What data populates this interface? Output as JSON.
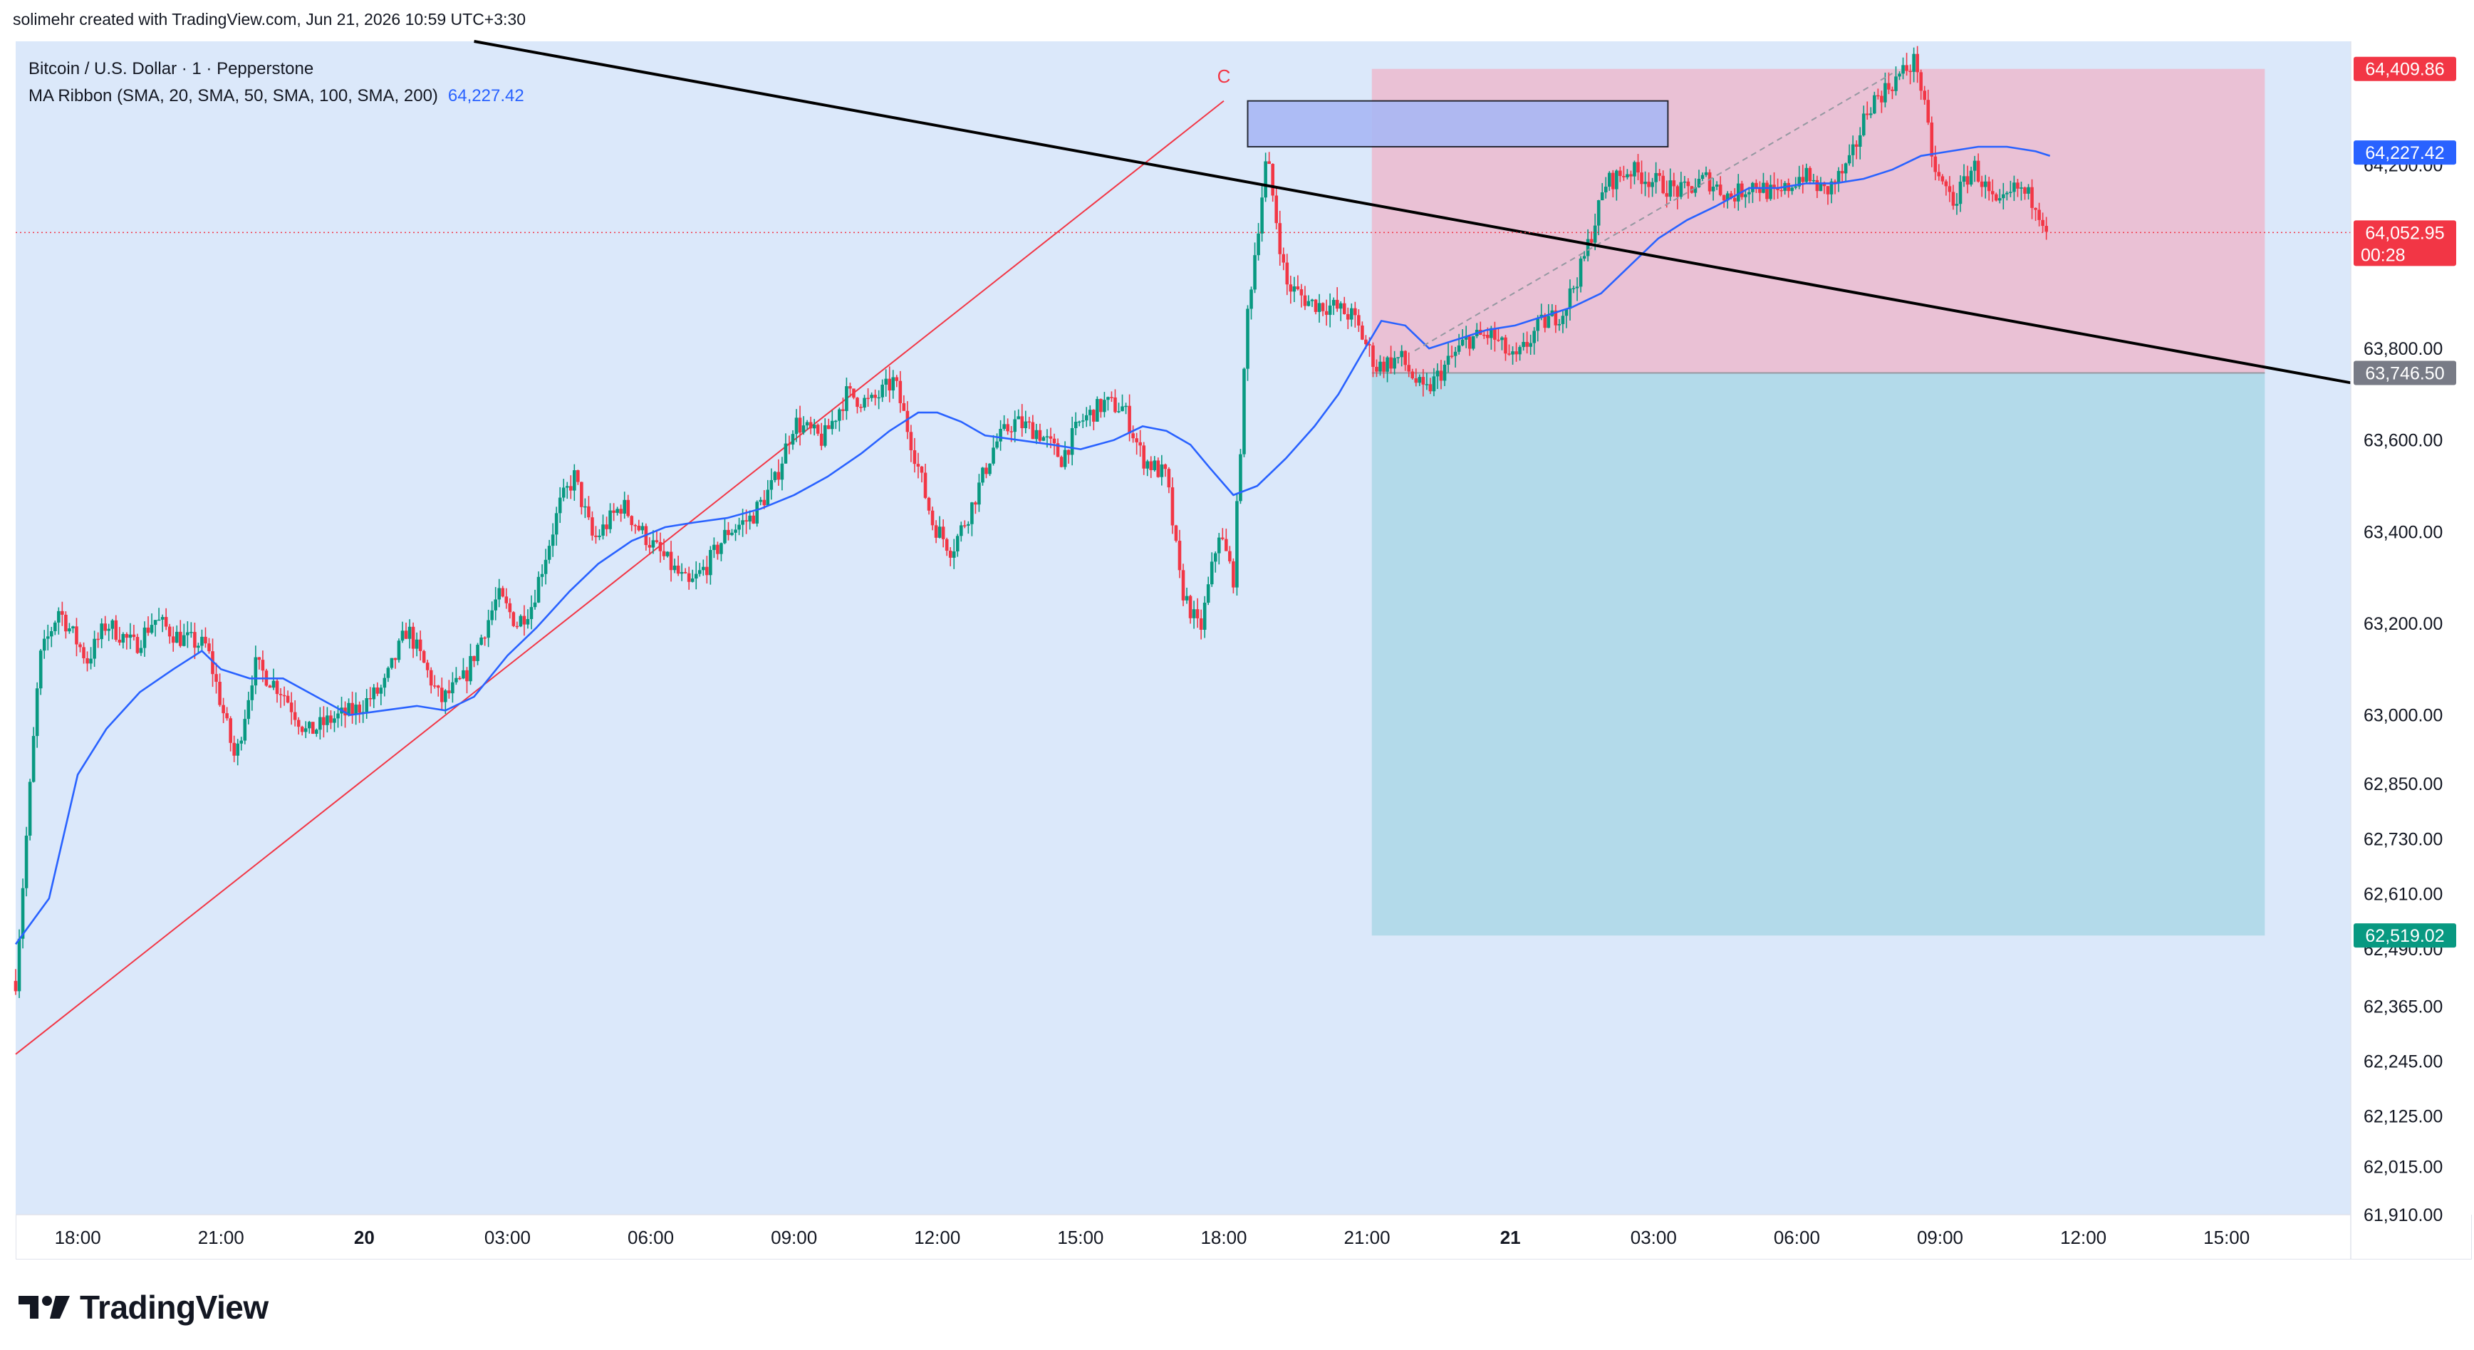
{
  "header": {
    "creator_text": "solimehr created with TradingView.com, Jun 21, 2026 10:59 UTC+3:30"
  },
  "legend": {
    "symbol": "Bitcoin / U.S. Dollar · 1 · Pepperstone",
    "indicator": "MA Ribbon (SMA, 20, SMA, 50, SMA, 100, SMA, 200)",
    "indicator_value": "64,227.42"
  },
  "annotation": {
    "wave_label": "C"
  },
  "footer": {
    "brand": "TradingView"
  },
  "colors": {
    "bg_zone": "#dbe8fa",
    "stop_zone": "#efb4c8",
    "target_zone": "#a6d6e4",
    "up": "#089981",
    "down": "#f23645",
    "ma": "#2962ff",
    "trend": "#000000",
    "red_line": "#f23645"
  },
  "chart_data": {
    "type": "candlestick",
    "symbol": "Bitcoin / U.S. Dollar",
    "interval": "1",
    "ylim": [
      61910,
      64470
    ],
    "y_ticks": [
      {
        "v": 64200,
        "label": "64,200.00"
      },
      {
        "v": 63800,
        "label": "63,800.00"
      },
      {
        "v": 63600,
        "label": "63,600.00"
      },
      {
        "v": 63400,
        "label": "63,400.00"
      },
      {
        "v": 63200,
        "label": "63,200.00"
      },
      {
        "v": 63000,
        "label": "63,000.00"
      },
      {
        "v": 62850,
        "label": "62,850.00"
      },
      {
        "v": 62730,
        "label": "62,730.00"
      },
      {
        "v": 62610,
        "label": "62,610.00"
      },
      {
        "v": 62490,
        "label": "62,490.00"
      },
      {
        "v": 62365,
        "label": "62,365.00"
      },
      {
        "v": 62245,
        "label": "62,245.00"
      },
      {
        "v": 62125,
        "label": "62,125.00"
      },
      {
        "v": 62015,
        "label": "62,015.00"
      },
      {
        "v": 61910,
        "label": "61,910.00"
      }
    ],
    "x_ticks": [
      {
        "h": 18,
        "label": "18:00",
        "bold": false
      },
      {
        "h": 21,
        "label": "21:00",
        "bold": false
      },
      {
        "h": 24,
        "label": "20",
        "bold": true
      },
      {
        "h": 27,
        "label": "03:00",
        "bold": false
      },
      {
        "h": 30,
        "label": "06:00",
        "bold": false
      },
      {
        "h": 33,
        "label": "09:00",
        "bold": false
      },
      {
        "h": 36,
        "label": "12:00",
        "bold": false
      },
      {
        "h": 39,
        "label": "15:00",
        "bold": false
      },
      {
        "h": 42,
        "label": "18:00",
        "bold": false
      },
      {
        "h": 45,
        "label": "21:00",
        "bold": false
      },
      {
        "h": 48,
        "label": "21",
        "bold": true
      },
      {
        "h": 51,
        "label": "03:00",
        "bold": false
      },
      {
        "h": 54,
        "label": "06:00",
        "bold": false
      },
      {
        "h": 57,
        "label": "09:00",
        "bold": false
      },
      {
        "h": 60,
        "label": "12:00",
        "bold": false
      },
      {
        "h": 63,
        "label": "15:00",
        "bold": false
      }
    ],
    "xlim_hours": [
      16.7,
      65.6
    ],
    "price_path": [
      [
        16.7,
        62420
      ],
      [
        17.2,
        63120
      ],
      [
        17.6,
        63230
      ],
      [
        18.2,
        63120
      ],
      [
        18.6,
        63200
      ],
      [
        19.2,
        63150
      ],
      [
        19.6,
        63210
      ],
      [
        20.1,
        63170
      ],
      [
        20.7,
        63150
      ],
      [
        21.3,
        62900
      ],
      [
        21.7,
        63110
      ],
      [
        22.3,
        63050
      ],
      [
        22.8,
        62960
      ],
      [
        23.3,
        62990
      ],
      [
        23.8,
        63010
      ],
      [
        24.4,
        63060
      ],
      [
        24.9,
        63190
      ],
      [
        25.6,
        63030
      ],
      [
        26.1,
        63080
      ],
      [
        26.8,
        63260
      ],
      [
        27.2,
        63200
      ],
      [
        27.5,
        63240
      ],
      [
        28.1,
        63460
      ],
      [
        28.4,
        63520
      ],
      [
        28.8,
        63380
      ],
      [
        29.4,
        63460
      ],
      [
        29.8,
        63400
      ],
      [
        30.3,
        63340
      ],
      [
        30.8,
        63280
      ],
      [
        31.2,
        63330
      ],
      [
        31.6,
        63400
      ],
      [
        32.1,
        63430
      ],
      [
        32.6,
        63510
      ],
      [
        33.0,
        63640
      ],
      [
        33.6,
        63600
      ],
      [
        34.1,
        63700
      ],
      [
        34.6,
        63680
      ],
      [
        35.1,
        63730
      ],
      [
        35.5,
        63580
      ],
      [
        35.9,
        63420
      ],
      [
        36.3,
        63360
      ],
      [
        36.7,
        63450
      ],
      [
        37.2,
        63590
      ],
      [
        37.6,
        63640
      ],
      [
        38.1,
        63620
      ],
      [
        38.6,
        63560
      ],
      [
        39.0,
        63640
      ],
      [
        39.5,
        63680
      ],
      [
        39.9,
        63670
      ],
      [
        40.3,
        63560
      ],
      [
        40.8,
        63520
      ],
      [
        41.1,
        63280
      ],
      [
        41.5,
        63180
      ],
      [
        41.9,
        63400
      ],
      [
        42.2,
        63300
      ],
      [
        42.5,
        63880
      ],
      [
        42.9,
        64220
      ],
      [
        43.3,
        63940
      ],
      [
        43.8,
        63900
      ],
      [
        44.3,
        63890
      ],
      [
        44.7,
        63870
      ],
      [
        45.2,
        63760
      ],
      [
        45.7,
        63780
      ],
      [
        46.2,
        63700
      ],
      [
        46.7,
        63770
      ],
      [
        47.1,
        63820
      ],
      [
        47.6,
        63830
      ],
      [
        48.1,
        63770
      ],
      [
        48.6,
        63850
      ],
      [
        49.1,
        63880
      ],
      [
        49.5,
        63980
      ],
      [
        50.0,
        64160
      ],
      [
        50.5,
        64190
      ],
      [
        51.1,
        64160
      ],
      [
        51.6,
        64140
      ],
      [
        52.1,
        64170
      ],
      [
        52.6,
        64130
      ],
      [
        53.1,
        64160
      ],
      [
        53.6,
        64130
      ],
      [
        54.1,
        64180
      ],
      [
        54.6,
        64140
      ],
      [
        55.1,
        64200
      ],
      [
        55.5,
        64330
      ],
      [
        56.0,
        64380
      ],
      [
        56.5,
        64430
      ],
      [
        56.9,
        64180
      ],
      [
        57.3,
        64120
      ],
      [
        57.7,
        64200
      ],
      [
        58.2,
        64100
      ],
      [
        58.6,
        64150
      ],
      [
        59.0,
        64120
      ],
      [
        59.3,
        64050
      ]
    ],
    "ma_path": [
      [
        16.7,
        62500
      ],
      [
        17.4,
        62600
      ],
      [
        18.0,
        62870
      ],
      [
        18.6,
        62970
      ],
      [
        19.3,
        63050
      ],
      [
        20.0,
        63100
      ],
      [
        20.6,
        63140
      ],
      [
        21.0,
        63100
      ],
      [
        21.6,
        63080
      ],
      [
        22.3,
        63080
      ],
      [
        23.0,
        63040
      ],
      [
        23.7,
        63000
      ],
      [
        24.4,
        63010
      ],
      [
        25.1,
        63020
      ],
      [
        25.7,
        63010
      ],
      [
        26.3,
        63040
      ],
      [
        27.0,
        63130
      ],
      [
        27.6,
        63190
      ],
      [
        28.3,
        63270
      ],
      [
        28.9,
        63330
      ],
      [
        29.6,
        63380
      ],
      [
        30.3,
        63410
      ],
      [
        30.9,
        63420
      ],
      [
        31.6,
        63430
      ],
      [
        32.3,
        63450
      ],
      [
        33.0,
        63480
      ],
      [
        33.7,
        63520
      ],
      [
        34.4,
        63570
      ],
      [
        35.0,
        63620
      ],
      [
        35.6,
        63660
      ],
      [
        36.0,
        63660
      ],
      [
        36.5,
        63640
      ],
      [
        37.0,
        63610
      ],
      [
        37.7,
        63600
      ],
      [
        38.4,
        63590
      ],
      [
        39.0,
        63580
      ],
      [
        39.7,
        63600
      ],
      [
        40.3,
        63630
      ],
      [
        40.8,
        63620
      ],
      [
        41.3,
        63590
      ],
      [
        41.7,
        63540
      ],
      [
        42.2,
        63480
      ],
      [
        42.7,
        63500
      ],
      [
        43.3,
        63560
      ],
      [
        43.9,
        63630
      ],
      [
        44.4,
        63700
      ],
      [
        44.9,
        63790
      ],
      [
        45.3,
        63860
      ],
      [
        45.8,
        63850
      ],
      [
        46.3,
        63800
      ],
      [
        46.9,
        63820
      ],
      [
        47.5,
        63840
      ],
      [
        48.1,
        63850
      ],
      [
        48.7,
        63870
      ],
      [
        49.3,
        63890
      ],
      [
        49.9,
        63920
      ],
      [
        50.5,
        63980
      ],
      [
        51.1,
        64040
      ],
      [
        51.7,
        64080
      ],
      [
        52.3,
        64110
      ],
      [
        53.0,
        64150
      ],
      [
        53.6,
        64150
      ],
      [
        54.2,
        64160
      ],
      [
        54.8,
        64160
      ],
      [
        55.4,
        64170
      ],
      [
        56.0,
        64190
      ],
      [
        56.6,
        64220
      ],
      [
        57.2,
        64230
      ],
      [
        57.8,
        64240
      ],
      [
        58.4,
        64240
      ],
      [
        59.0,
        64230
      ],
      [
        59.3,
        64220
      ]
    ],
    "trend_line": [
      [
        26.3,
        64470
      ],
      [
        65.6,
        63725
      ]
    ],
    "red_line": [
      [
        16.7,
        62260
      ],
      [
        42.0,
        64340
      ]
    ],
    "position_tool": {
      "x_start_h": 45.1,
      "x_end_h": 63.8,
      "entry": 63746.5,
      "stop": 64409.86,
      "target": 62519.02
    },
    "order_block": {
      "x_start_h": 42.5,
      "x_end_h": 51.3,
      "top": 64340,
      "bottom": 64240
    },
    "dashed_projection": [
      [
        46.0,
        63795
      ],
      [
        56.0,
        64400
      ]
    ],
    "wave_label_at": [
      42.0,
      64380
    ],
    "price_tags": [
      {
        "v": 64409.86,
        "label": "64,409.86",
        "color": "#f23645",
        "text": "#ffffff"
      },
      {
        "v": 64227.42,
        "label": "64,227.42",
        "color": "#2962ff",
        "text": "#ffffff"
      },
      {
        "v": 64052.95,
        "label": "64,052.95",
        "sub": "00:28",
        "color": "#f23645",
        "text": "#ffffff"
      },
      {
        "v": 63746.5,
        "label": "63,746.50",
        "color": "#787b86",
        "text": "#ffffff"
      },
      {
        "v": 62519.02,
        "label": "62,519.02",
        "color": "#089981",
        "text": "#ffffff"
      }
    ],
    "last_price": 64052.95
  }
}
